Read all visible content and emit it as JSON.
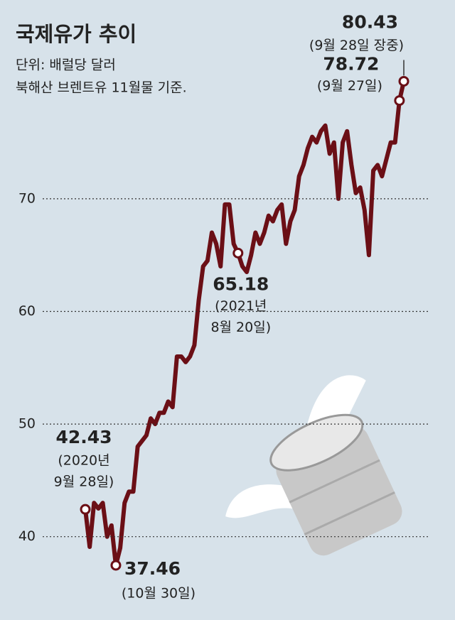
{
  "chart_data": {
    "type": "line",
    "title": "국제유가 추이",
    "subtitle": [
      "단위: 배럴당 달러",
      "북해산 브렌트유 11월물 기준."
    ],
    "ylim": [
      35,
      85
    ],
    "yticks": [
      40,
      50,
      60,
      70
    ],
    "grid": true,
    "series": [
      {
        "name": "북해산 브렌트유",
        "color": "#6b0f16",
        "values": [
          42.43,
          39.1,
          43,
          42.5,
          43,
          40,
          41,
          37.46,
          39,
          43,
          44,
          44,
          48,
          48.5,
          49,
          50.5,
          50,
          51,
          51,
          52,
          51.5,
          56,
          56,
          55.5,
          56,
          57,
          61,
          64,
          64.5,
          67,
          66,
          64,
          69.5,
          69.5,
          66,
          65.18,
          64,
          63.5,
          65,
          67,
          66,
          67,
          68.5,
          68,
          69,
          69.5,
          66,
          68,
          69,
          72,
          73,
          74.5,
          75.5,
          75,
          76,
          76.5,
          74,
          75,
          70,
          75,
          76,
          73,
          70.5,
          71,
          69,
          65,
          72.5,
          73,
          72,
          73.5,
          75,
          75,
          78.72,
          80.43
        ]
      }
    ],
    "annotations": [
      {
        "value": 80.43,
        "text": [
          "(9월 28일 장중)"
        ]
      },
      {
        "value": 78.72,
        "text": [
          "(9월 27일)"
        ]
      },
      {
        "value": 65.18,
        "text": [
          "(2021년",
          "8월 20일)"
        ]
      },
      {
        "value": 42.43,
        "text": [
          "(2020년",
          "9월 28일)"
        ]
      },
      {
        "value": 37.46,
        "text": [
          "(10월 30일)"
        ]
      }
    ]
  }
}
